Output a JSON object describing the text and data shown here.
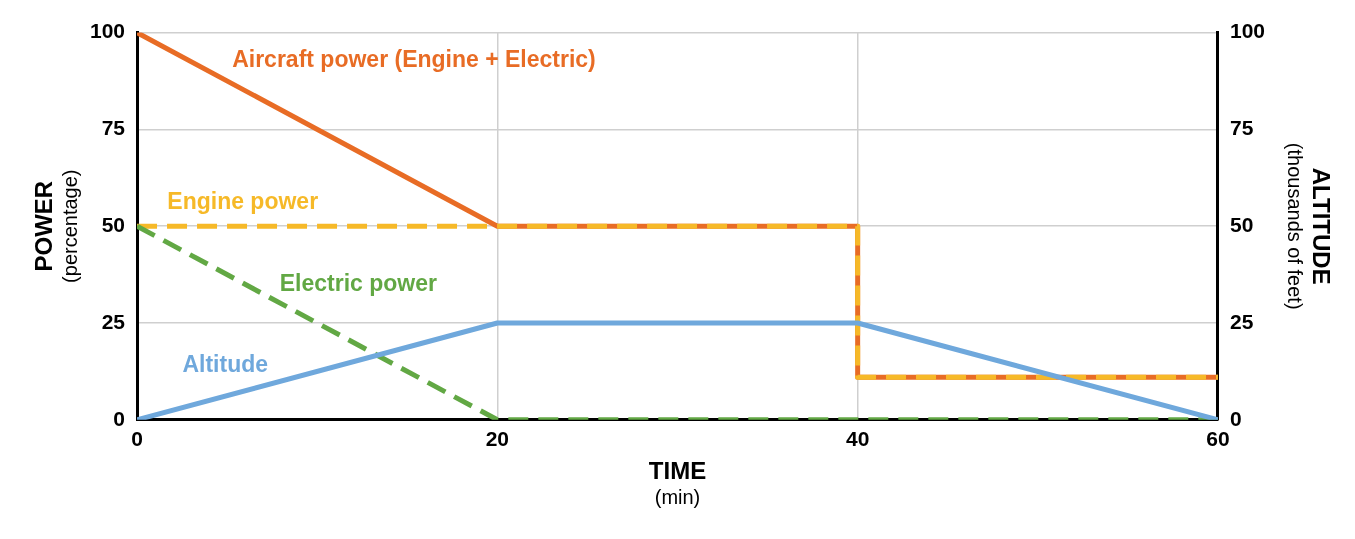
{
  "chart_data": {
    "type": "line",
    "xlabel": "TIME\n(min)",
    "ylabel": "POWER\n(percentage)",
    "y2label": "ALTITUDE\n(thousands of feet)",
    "xlim": [
      0,
      60
    ],
    "xticks": [
      0,
      20,
      40,
      60
    ],
    "ylim": [
      0,
      100
    ],
    "yticks": [
      0,
      25,
      50,
      75,
      100
    ],
    "y2lim": [
      0,
      100
    ],
    "y2ticks": [
      0,
      25,
      50,
      75,
      100
    ],
    "grid": true,
    "legend": false,
    "marker": "none",
    "series": [
      {
        "name": "Aircraft power (Engine + Electric)",
        "color": "#e86c25",
        "x": [
          0,
          20,
          40,
          40,
          60
        ],
        "values": [
          100,
          50,
          50,
          11,
          11
        ],
        "line_style": "solid"
      },
      {
        "name": "Engine power",
        "color": "#f6b928",
        "x": [
          0,
          40,
          40,
          60
        ],
        "values": [
          50,
          50,
          11,
          11
        ],
        "line_style": "dashed"
      },
      {
        "name": "Electric power",
        "color": "#62a844",
        "x": [
          0,
          20,
          60
        ],
        "values": [
          50,
          0,
          0
        ],
        "line_style": "dashed"
      },
      {
        "name": "Altitude",
        "color": "#6fa8dc",
        "x": [
          0,
          20,
          40,
          60
        ],
        "values": [
          0,
          25,
          25,
          0
        ],
        "axis": "y2",
        "line_style": "solid"
      }
    ]
  }
}
